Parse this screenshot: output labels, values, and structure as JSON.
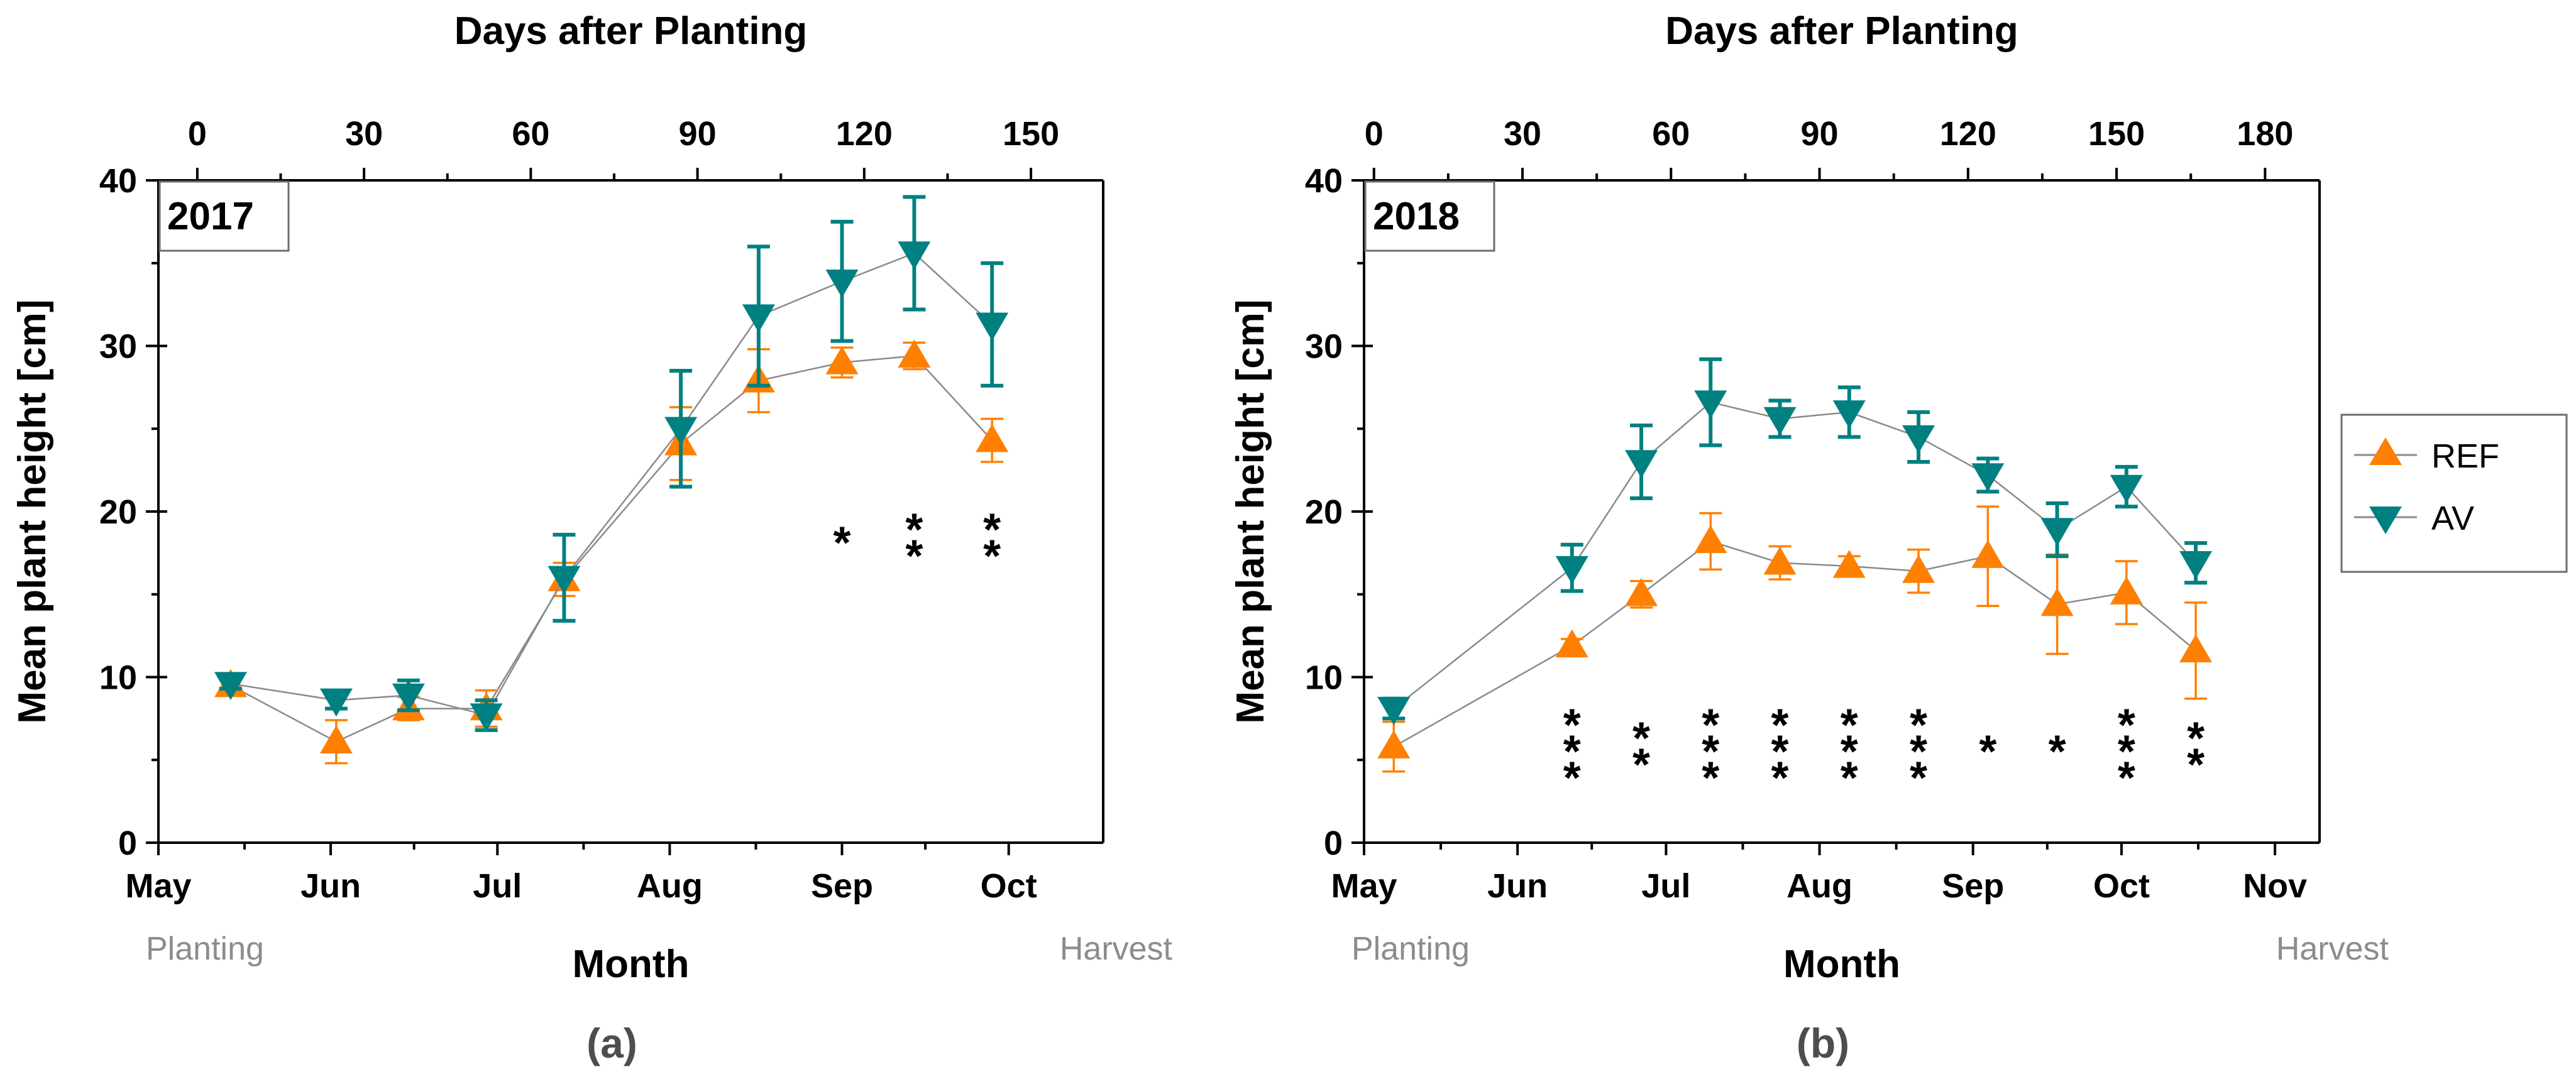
{
  "colors": {
    "ref": "#ff8000",
    "av": "#008080",
    "line": "#8a8a8a",
    "note": "#8c8c8c",
    "panel_label": "#4d4d4d"
  },
  "legend": {
    "ref_label": "REF",
    "av_label": "AV"
  },
  "chart_data": [
    {
      "type": "line",
      "panel_label": "(a)",
      "year_label": "2017",
      "xlabel": "Month",
      "top_axis_label": "Days after Planting",
      "ylabel": "Mean plant height [cm]",
      "ylim": [
        0,
        40
      ],
      "yticks": [
        "0",
        "10",
        "20",
        "30",
        "40"
      ],
      "month_ticks": [
        "May",
        "Jun",
        "Jul",
        "Aug",
        "Sep",
        "Oct"
      ],
      "xlim_days": [
        -7,
        163
      ],
      "month_tick_days": [
        -7,
        24,
        54,
        85,
        116,
        146
      ],
      "days_ticks": [
        "0",
        "30",
        "60",
        "90",
        "120",
        "150"
      ],
      "start_note": "Planting",
      "end_note": "Harvest",
      "series": [
        {
          "name": "REF",
          "days": [
            6,
            25,
            38,
            52,
            66,
            87,
            101,
            116,
            129,
            143
          ],
          "values": [
            9.5,
            6.1,
            8.1,
            8.1,
            15.9,
            24.1,
            27.9,
            29.0,
            29.4,
            24.3
          ],
          "errors": [
            0.6,
            1.3,
            0.7,
            1.1,
            1.0,
            2.2,
            1.9,
            0.9,
            0.8,
            1.3
          ]
        },
        {
          "name": "AV",
          "days": [
            6,
            25,
            38,
            52,
            66,
            87,
            101,
            116,
            129,
            143
          ],
          "values": [
            9.6,
            8.6,
            8.9,
            7.7,
            16.0,
            25.0,
            31.8,
            33.9,
            35.6,
            31.3
          ],
          "errors": [
            0.3,
            0.5,
            0.9,
            0.9,
            2.6,
            3.5,
            4.2,
            3.6,
            3.4,
            3.7
          ]
        }
      ],
      "significance": [
        {
          "day": 116,
          "stars": "*"
        },
        {
          "day": 129,
          "stars": "**"
        },
        {
          "day": 143,
          "stars": "**"
        }
      ],
      "significance_y": 18.0
    },
    {
      "type": "line",
      "panel_label": "(b)",
      "year_label": "2018",
      "xlabel": "Month",
      "top_axis_label": "Days after Planting",
      "ylabel": "Mean plant height [cm]",
      "ylim": [
        0,
        40
      ],
      "yticks": [
        "0",
        "10",
        "20",
        "30",
        "40"
      ],
      "month_ticks": [
        "May",
        "Jun",
        "Jul",
        "Aug",
        "Sep",
        "Oct",
        "Nov"
      ],
      "xlim_days": [
        -2,
        191
      ],
      "month_tick_days": [
        -2,
        29,
        59,
        90,
        121,
        151,
        182
      ],
      "days_ticks": [
        "0",
        "30",
        "60",
        "90",
        "120",
        "150",
        "180"
      ],
      "start_note": "Planting",
      "end_note": "Harvest",
      "series": [
        {
          "name": "REF",
          "days": [
            4,
            40,
            54,
            68,
            82,
            96,
            110,
            124,
            138,
            152,
            166
          ],
          "values": [
            5.8,
            11.9,
            15.0,
            18.2,
            16.9,
            16.7,
            16.4,
            17.3,
            14.4,
            15.1,
            11.6
          ],
          "errors": [
            1.5,
            0.4,
            0.8,
            1.7,
            1.0,
            0.6,
            1.3,
            3.0,
            3.0,
            1.9,
            2.9
          ]
        },
        {
          "name": "AV",
          "days": [
            4,
            40,
            54,
            68,
            82,
            96,
            110,
            124,
            138,
            152,
            166
          ],
          "values": [
            8.1,
            16.6,
            23.0,
            26.6,
            25.6,
            26.0,
            24.5,
            22.2,
            18.9,
            21.5,
            16.9
          ],
          "errors": [
            0.6,
            1.4,
            2.2,
            2.6,
            1.1,
            1.5,
            1.5,
            1.0,
            1.6,
            1.2,
            1.2
          ]
        }
      ],
      "significance": [
        {
          "day": 40,
          "stars": "***"
        },
        {
          "day": 54,
          "stars": "**"
        },
        {
          "day": 68,
          "stars": "***"
        },
        {
          "day": 82,
          "stars": "***"
        },
        {
          "day": 96,
          "stars": "***"
        },
        {
          "day": 110,
          "stars": "***"
        },
        {
          "day": 124,
          "stars": "*"
        },
        {
          "day": 138,
          "stars": "*"
        },
        {
          "day": 152,
          "stars": "***"
        },
        {
          "day": 166,
          "stars": "**"
        }
      ],
      "significance_y": 5.4
    }
  ]
}
